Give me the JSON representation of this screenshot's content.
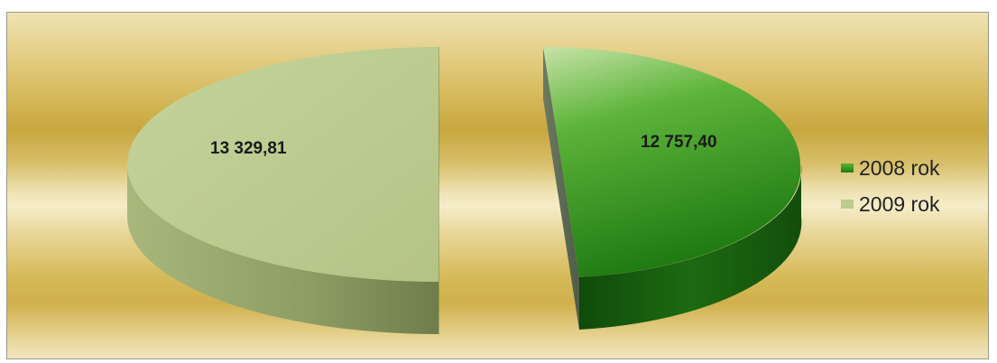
{
  "chart_data": {
    "type": "pie",
    "variant": "3d-exploded",
    "categories": [
      "2008 rok",
      "2009 rok"
    ],
    "values": [
      12757.4,
      13329.81
    ],
    "data_labels": [
      "12 757,40",
      "13 329,81"
    ],
    "colors": {
      "2008 rok": "#2f8a1c",
      "2009 rok": "#bccb8e"
    },
    "legend_position": "right",
    "background": "gold gradient"
  },
  "legend": {
    "items": [
      {
        "label": "2008 rok",
        "color": "#2f8a1c"
      },
      {
        "label": "2009 rok",
        "color": "#bccb8e"
      }
    ]
  }
}
